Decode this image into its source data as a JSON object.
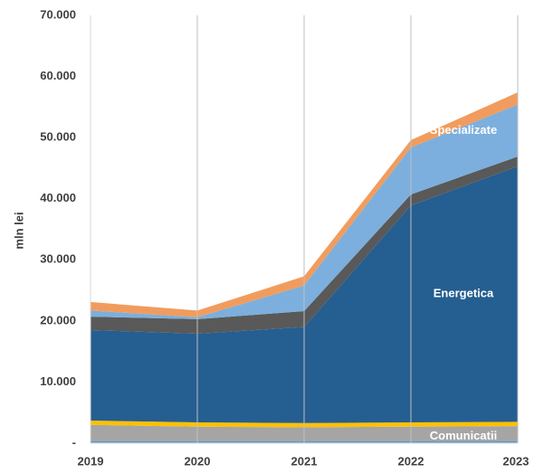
{
  "chart_data": {
    "type": "stacked_area",
    "ylabel": "mln lei",
    "categories": [
      "2019",
      "2020",
      "2021",
      "2022",
      "2023"
    ],
    "ylim": [
      0,
      70000
    ],
    "yticks": [
      {
        "value": 0,
        "label": "-"
      },
      {
        "value": 10000,
        "label": "10.000"
      },
      {
        "value": 20000,
        "label": "20.000"
      },
      {
        "value": 30000,
        "label": "30.000"
      },
      {
        "value": 40000,
        "label": "40.000"
      },
      {
        "value": 50000,
        "label": "50.000"
      },
      {
        "value": 60000,
        "label": "60.000"
      },
      {
        "value": 70000,
        "label": "70.000"
      }
    ],
    "grid": true,
    "series": [
      {
        "color": "#5b9bd5",
        "values": [
          300,
          300,
          300,
          300,
          300
        ]
      },
      {
        "name": "Comunicatii",
        "color": "#a5a5a5",
        "values": [
          2700,
          2400,
          2300,
          2400,
          2500
        ]
      },
      {
        "color": "#ffc000",
        "values": [
          700,
          700,
          700,
          700,
          700
        ]
      },
      {
        "name": "Energetica",
        "color": "#255e91",
        "values": [
          14800,
          14500,
          15700,
          35500,
          41800
        ]
      },
      {
        "color": "#595959",
        "values": [
          2200,
          2400,
          2600,
          1800,
          1600
        ]
      },
      {
        "name": "Specializate",
        "color": "#7cafdd",
        "values": [
          1000,
          300,
          4200,
          7700,
          8500
        ]
      },
      {
        "color": "#f19c5e",
        "values": [
          1400,
          1100,
          1500,
          1200,
          2000
        ]
      }
    ]
  }
}
